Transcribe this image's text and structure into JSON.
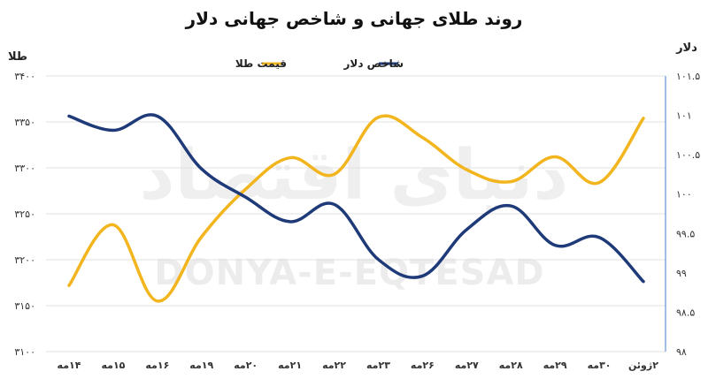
{
  "watermark": {
    "latin": "DONYA-E-EQTESAD",
    "persian": "دنیای اقتصاد"
  },
  "colors": {
    "gold": "#F2B51E",
    "dollar": "#1E3A78",
    "grid": "#e0e0e0",
    "right_axis_line": "#4a7fd6"
  },
  "chart_data": {
    "type": "line",
    "title": "روند طلای جهانی و شاخص جهانی دلار",
    "ylabel_left": "طلا",
    "ylabel_right": "دلار",
    "categories": [
      "۱۴مه",
      "۱۵مه",
      "۱۶مه",
      "۱۹مه",
      "۲۰مه",
      "۲۱مه",
      "۲۲مه",
      "۲۳مه",
      "۲۶مه",
      "۲۷مه",
      "۲۸مه",
      "۲۹مه",
      "۳۰مه",
      "۲ژوئن"
    ],
    "ylim_left": [
      3100,
      3400
    ],
    "ylim_right": [
      98,
      101.5
    ],
    "yticks_left": [
      {
        "value": 3100,
        "label": "۳۱۰۰"
      },
      {
        "value": 3150,
        "label": "۳۱۵۰"
      },
      {
        "value": 3200,
        "label": "۳۲۰۰"
      },
      {
        "value": 3250,
        "label": "۳۲۵۰"
      },
      {
        "value": 3300,
        "label": "۳۳۰۰"
      },
      {
        "value": 3350,
        "label": "۳۳۵۰"
      },
      {
        "value": 3400,
        "label": "۳۴۰۰"
      }
    ],
    "yticks_right": [
      {
        "value": 98,
        "label": "۹۸"
      },
      {
        "value": 98.5,
        "label": "۹۸.۵"
      },
      {
        "value": 99,
        "label": "۹۹"
      },
      {
        "value": 99.5,
        "label": "۹۹.۵"
      },
      {
        "value": 100,
        "label": "۱۰۰"
      },
      {
        "value": 100.5,
        "label": "۱۰۰.۵"
      },
      {
        "value": 101,
        "label": "۱۰۱"
      },
      {
        "value": 101.5,
        "label": "۱۰۱.۵"
      }
    ],
    "series": [
      {
        "name": "قیمت طلا",
        "axis": "left",
        "color": "#F2B51E",
        "values": [
          3172,
          3238,
          3155,
          3225,
          3277,
          3311,
          3293,
          3355,
          3333,
          3298,
          3285,
          3312,
          3284,
          3354
        ]
      },
      {
        "name": "شاخص دلار",
        "axis": "right",
        "color": "#1E3A78",
        "values": [
          100.99,
          100.81,
          100.99,
          100.32,
          99.96,
          99.65,
          99.87,
          99.17,
          98.96,
          99.55,
          99.85,
          99.35,
          99.45,
          98.89
        ]
      }
    ],
    "grid": true,
    "legend_position": "top-center"
  }
}
